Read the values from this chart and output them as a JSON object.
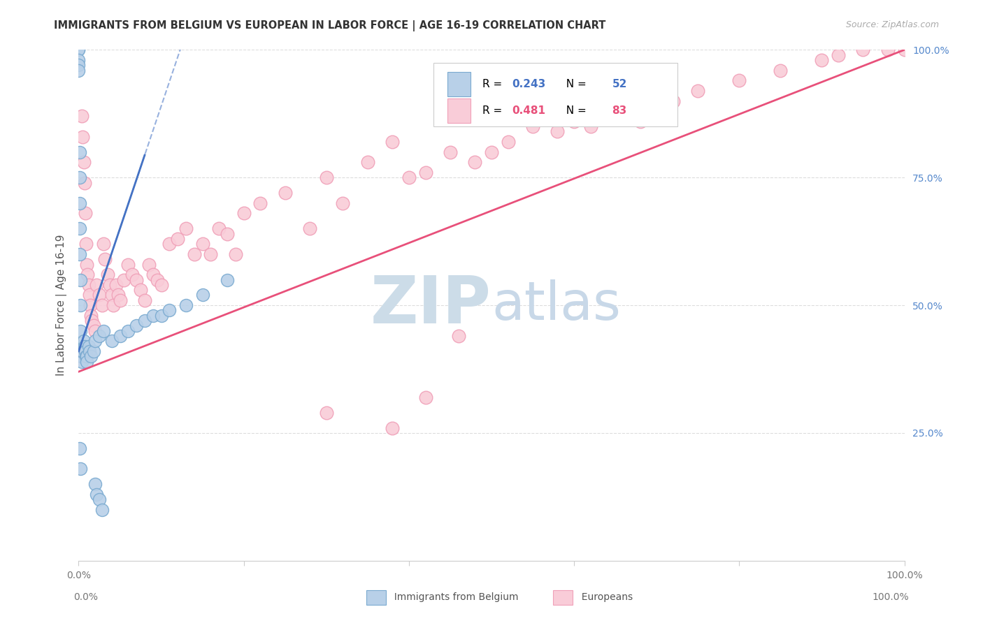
{
  "title": "IMMIGRANTS FROM BELGIUM VS EUROPEAN IN LABOR FORCE | AGE 16-19 CORRELATION CHART",
  "source": "Source: ZipAtlas.com",
  "ylabel": "In Labor Force | Age 16-19",
  "legend_blue_label": "Immigrants from Belgium",
  "legend_pink_label": "Europeans",
  "blue_R": 0.243,
  "blue_N": 52,
  "pink_R": 0.481,
  "pink_N": 83,
  "blue_fill_color": "#b8d0e8",
  "blue_edge_color": "#7aaad0",
  "pink_fill_color": "#f9ccd8",
  "pink_edge_color": "#f0a0b8",
  "blue_line_color": "#4472c4",
  "pink_line_color": "#e8507a",
  "watermark_zip_color": "#ccdce8",
  "watermark_atlas_color": "#c8d8e8",
  "background_color": "#ffffff",
  "grid_color": "#dddddd",
  "title_color": "#333333",
  "source_color": "#aaaaaa",
  "right_tick_color": "#5588cc",
  "legend_R_color": "#4472c4",
  "legend_N_color": "#4472c4",
  "xlim": [
    0.0,
    1.0
  ],
  "ylim": [
    0.0,
    1.0
  ],
  "figsize": [
    14.06,
    8.92
  ],
  "dpi": 100
}
